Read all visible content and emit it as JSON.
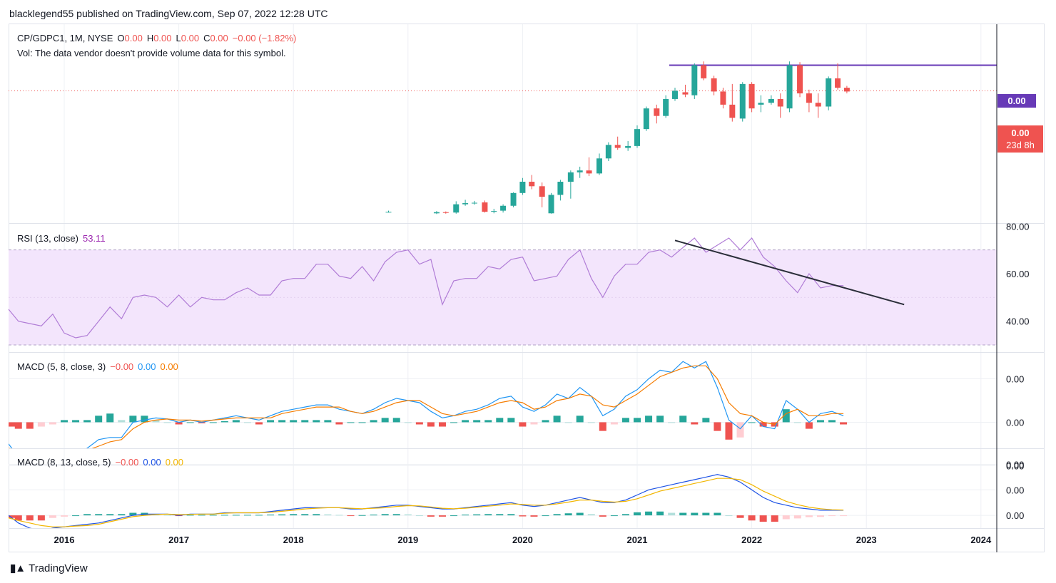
{
  "header": {
    "publisher": "blacklegend55 published on TradingView.com, Sep 07, 2022 12:28 UTC"
  },
  "main_legend": {
    "symbol": "CP/GDPC1, 1M, NYSE",
    "o_label": "O",
    "o_value": "0.00",
    "h_label": "H",
    "h_value": "0.00",
    "l_label": "L",
    "l_value": "0.00",
    "c_label": "C",
    "c_value": "0.00",
    "change": "−0.00 (−1.82%)",
    "volume_note": "Vol: The data vendor doesn't provide volume data for this symbol."
  },
  "price_labels": {
    "resistance": "0.00",
    "last": "0.00",
    "countdown": "23d 8h"
  },
  "rsi_legend": {
    "name": "RSI (13, close)",
    "value": "53.11"
  },
  "macd1_legend": {
    "name": "MACD (5, 8, close, 3)",
    "hist": "−0.00",
    "macd": "0.00",
    "signal": "0.00"
  },
  "macd2_legend": {
    "name": "MACD (8, 13, close, 5)",
    "hist": "−0.00",
    "macd": "0.00",
    "signal": "0.00"
  },
  "brand": {
    "name": "TradingView"
  },
  "colors": {
    "up": "#26a69a",
    "down": "#ef5350",
    "rsi": "#b07cd6",
    "rsi_band": "#f3e5fc",
    "macd1": "#2196f3",
    "signal1": "#f57c00",
    "macd2": "#1e53e5",
    "signal2": "#f2b600",
    "resistance": "#673ab7"
  },
  "chart_data": [
    {
      "type": "candlestick",
      "x_tick_labels": [
        "2016",
        "2017",
        "2018",
        "2019",
        "2020",
        "2021",
        "2022",
        "2023",
        "2024"
      ],
      "x_tick_years": [
        2016,
        2017,
        2018,
        2019,
        2020,
        2021,
        2022,
        2023,
        2024
      ],
      "y_tick_labels": [],
      "note": "Monthly candles; y values in relative price units",
      "candles": [
        {
          "t": 2018.83,
          "o": 1.0,
          "h": 1.3,
          "l": 0.8,
          "c": 1.0
        },
        {
          "t": 2019.25,
          "o": 0.6,
          "h": 1.2,
          "l": 0.4,
          "c": 0.9
        },
        {
          "t": 2019.33,
          "o": 0.9,
          "h": 1.1,
          "l": 0.5,
          "c": 0.7
        },
        {
          "t": 2019.42,
          "o": 0.8,
          "h": 3.8,
          "l": 0.5,
          "c": 3.0
        },
        {
          "t": 2019.5,
          "o": 3.0,
          "h": 4.2,
          "l": 2.6,
          "c": 3.3
        },
        {
          "t": 2019.58,
          "o": 3.3,
          "h": 3.9,
          "l": 2.9,
          "c": 3.4
        },
        {
          "t": 2019.67,
          "o": 3.5,
          "h": 4.0,
          "l": 0.8,
          "c": 1.0
        },
        {
          "t": 2019.75,
          "o": 1.0,
          "h": 1.8,
          "l": 0.6,
          "c": 1.2
        },
        {
          "t": 2019.83,
          "o": 1.3,
          "h": 3.0,
          "l": 0.8,
          "c": 2.6
        },
        {
          "t": 2019.92,
          "o": 2.6,
          "h": 6.2,
          "l": 2.2,
          "c": 6.0
        },
        {
          "t": 2020.0,
          "o": 6.0,
          "h": 10.0,
          "l": 5.5,
          "c": 9.0
        },
        {
          "t": 2020.08,
          "o": 9.0,
          "h": 10.8,
          "l": 7.0,
          "c": 7.8
        },
        {
          "t": 2020.17,
          "o": 7.8,
          "h": 8.8,
          "l": 2.2,
          "c": 5.0
        },
        {
          "t": 2020.25,
          "o": 0.6,
          "h": 6.0,
          "l": 0.5,
          "c": 5.5
        },
        {
          "t": 2020.33,
          "o": 5.5,
          "h": 9.5,
          "l": 4.0,
          "c": 9.0
        },
        {
          "t": 2020.42,
          "o": 9.0,
          "h": 12.0,
          "l": 4.5,
          "c": 11.5
        },
        {
          "t": 2020.5,
          "o": 11.5,
          "h": 13.0,
          "l": 10.0,
          "c": 12.0
        },
        {
          "t": 2020.58,
          "o": 12.0,
          "h": 15.5,
          "l": 10.5,
          "c": 11.2
        },
        {
          "t": 2020.67,
          "o": 11.2,
          "h": 16.5,
          "l": 10.8,
          "c": 15.2
        },
        {
          "t": 2020.75,
          "o": 15.2,
          "h": 19.5,
          "l": 14.5,
          "c": 18.8
        },
        {
          "t": 2020.83,
          "o": 18.8,
          "h": 21.0,
          "l": 17.5,
          "c": 18.0
        },
        {
          "t": 2020.92,
          "o": 18.0,
          "h": 19.8,
          "l": 17.2,
          "c": 18.5
        },
        {
          "t": 2021.0,
          "o": 18.5,
          "h": 24.0,
          "l": 18.0,
          "c": 23.0
        },
        {
          "t": 2021.08,
          "o": 23.0,
          "h": 29.0,
          "l": 22.5,
          "c": 28.5
        },
        {
          "t": 2021.17,
          "o": 28.5,
          "h": 29.5,
          "l": 24.5,
          "c": 26.5
        },
        {
          "t": 2021.25,
          "o": 26.5,
          "h": 32.0,
          "l": 26.0,
          "c": 31.0
        },
        {
          "t": 2021.33,
          "o": 31.0,
          "h": 34.0,
          "l": 30.5,
          "c": 33.2
        },
        {
          "t": 2021.42,
          "o": 32.8,
          "h": 34.8,
          "l": 31.5,
          "c": 32.2
        },
        {
          "t": 2021.5,
          "o": 32.0,
          "h": 40.5,
          "l": 31.0,
          "c": 40.0
        },
        {
          "t": 2021.58,
          "o": 40.0,
          "h": 41.0,
          "l": 36.0,
          "c": 36.5
        },
        {
          "t": 2021.67,
          "o": 36.5,
          "h": 37.2,
          "l": 32.0,
          "c": 33.0
        },
        {
          "t": 2021.75,
          "o": 33.0,
          "h": 34.0,
          "l": 28.5,
          "c": 29.5
        },
        {
          "t": 2021.83,
          "o": 29.5,
          "h": 35.0,
          "l": 25.0,
          "c": 26.0
        },
        {
          "t": 2021.92,
          "o": 25.8,
          "h": 35.5,
          "l": 25.0,
          "c": 35.0
        },
        {
          "t": 2022.0,
          "o": 35.0,
          "h": 35.5,
          "l": 27.5,
          "c": 28.5
        },
        {
          "t": 2022.08,
          "o": 29.5,
          "h": 32.0,
          "l": 27.5,
          "c": 30.0
        },
        {
          "t": 2022.17,
          "o": 30.0,
          "h": 32.0,
          "l": 29.5,
          "c": 31.0
        },
        {
          "t": 2022.25,
          "o": 31.0,
          "h": 32.5,
          "l": 26.0,
          "c": 29.0
        },
        {
          "t": 2022.33,
          "o": 28.5,
          "h": 41.0,
          "l": 27.5,
          "c": 40.0
        },
        {
          "t": 2022.42,
          "o": 40.0,
          "h": 40.8,
          "l": 31.5,
          "c": 32.5
        },
        {
          "t": 2022.5,
          "o": 32.5,
          "h": 33.5,
          "l": 27.5,
          "c": 30.0
        },
        {
          "t": 2022.58,
          "o": 30.0,
          "h": 32.5,
          "l": 26.0,
          "c": 29.0
        },
        {
          "t": 2022.67,
          "o": 29.0,
          "h": 37.0,
          "l": 28.0,
          "c": 36.5
        },
        {
          "t": 2022.75,
          "o": 36.5,
          "h": 40.5,
          "l": 33.5,
          "c": 34.0
        },
        {
          "t": 2022.83,
          "o": 34.0,
          "h": 34.5,
          "l": 32.5,
          "c": 33.0
        }
      ],
      "resistance_level": 40.0,
      "last_price": 33.2
    },
    {
      "type": "line",
      "series_label": "RSI (13, close)",
      "y_tick_labels": [
        "80.00",
        "60.00",
        "40.00"
      ],
      "y_ticks": [
        80,
        60,
        40
      ],
      "ylim": [
        27,
        81
      ],
      "band": [
        30,
        70
      ],
      "x": [
        2015.5,
        2015.6,
        2015.7,
        2015.8,
        2015.9,
        2016.0,
        2016.1,
        2016.2,
        2016.3,
        2016.4,
        2016.5,
        2016.6,
        2016.7,
        2016.8,
        2016.9,
        2017.0,
        2017.1,
        2017.2,
        2017.3,
        2017.4,
        2017.5,
        2017.6,
        2017.7,
        2017.8,
        2017.9,
        2018.0,
        2018.1,
        2018.2,
        2018.3,
        2018.4,
        2018.5,
        2018.6,
        2018.7,
        2018.8,
        2018.9,
        2019.0,
        2019.1,
        2019.2,
        2019.3,
        2019.4,
        2019.5,
        2019.6,
        2019.7,
        2019.8,
        2019.9,
        2020.0,
        2020.1,
        2020.2,
        2020.3,
        2020.4,
        2020.5,
        2020.6,
        2020.7,
        2020.8,
        2020.9,
        2021.0,
        2021.1,
        2021.2,
        2021.3,
        2021.4,
        2021.5,
        2021.6,
        2021.7,
        2021.8,
        2021.9,
        2022.0,
        2022.1,
        2022.2,
        2022.3,
        2022.4,
        2022.5,
        2022.6,
        2022.7,
        2022.8
      ],
      "y": [
        45,
        40,
        39,
        38,
        43,
        35,
        33,
        34,
        40,
        46,
        41,
        50,
        51,
        50,
        46,
        51,
        46,
        50,
        49,
        49,
        52,
        54,
        51,
        51,
        57,
        58,
        58,
        64,
        64,
        59,
        58,
        63,
        57,
        65,
        69,
        70,
        64,
        66,
        47,
        57,
        58,
        58,
        63,
        62,
        66,
        67,
        57,
        58,
        59,
        66,
        70,
        58,
        50,
        59,
        64,
        64,
        69,
        70,
        67,
        71,
        75,
        69,
        72,
        75,
        70,
        75,
        67,
        63,
        57,
        52,
        60,
        54,
        55,
        55
      ],
      "trendline": {
        "x": [
          2021.33,
          2023.33
        ],
        "y": [
          74,
          47
        ]
      }
    },
    {
      "type": "line+bar",
      "series_label": "MACD (5, 8, close, 3)",
      "y_tick_labels": [
        "0.00",
        "0.00",
        "0.00"
      ],
      "y_ticks": [
        2,
        0,
        -2
      ],
      "ylim": [
        -1.2,
        3.2
      ],
      "x": [
        2015.5,
        2015.6,
        2015.7,
        2015.8,
        2015.9,
        2016.0,
        2016.1,
        2016.2,
        2016.3,
        2016.4,
        2016.5,
        2016.6,
        2016.7,
        2016.8,
        2016.9,
        2017.0,
        2017.1,
        2017.2,
        2017.3,
        2017.4,
        2017.5,
        2017.6,
        2017.7,
        2017.8,
        2017.9,
        2018.0,
        2018.1,
        2018.2,
        2018.3,
        2018.4,
        2018.5,
        2018.6,
        2018.7,
        2018.8,
        2018.9,
        2019.0,
        2019.1,
        2019.2,
        2019.3,
        2019.4,
        2019.5,
        2019.6,
        2019.7,
        2019.8,
        2019.9,
        2020.0,
        2020.1,
        2020.2,
        2020.3,
        2020.4,
        2020.5,
        2020.6,
        2020.7,
        2020.8,
        2020.9,
        2021.0,
        2021.1,
        2021.2,
        2021.3,
        2021.4,
        2021.5,
        2021.6,
        2021.7,
        2021.8,
        2021.9,
        2022.0,
        2022.1,
        2022.2,
        2022.3,
        2022.4,
        2022.5,
        2022.6,
        2022.7,
        2022.8
      ],
      "macd": [
        -1.0,
        -1.6,
        -1.8,
        -1.9,
        -1.7,
        -1.5,
        -1.4,
        -1.2,
        -0.8,
        -0.7,
        -0.7,
        0.0,
        0.1,
        0.2,
        0.15,
        0.0,
        0.1,
        0.0,
        0.1,
        0.2,
        0.3,
        0.2,
        0.1,
        0.3,
        0.5,
        0.6,
        0.7,
        0.8,
        0.8,
        0.6,
        0.5,
        0.4,
        0.6,
        0.9,
        1.1,
        1.0,
        0.9,
        0.5,
        0.2,
        0.3,
        0.5,
        0.6,
        0.8,
        1.1,
        1.2,
        0.7,
        0.5,
        0.8,
        1.3,
        1.1,
        1.6,
        1.2,
        0.3,
        0.6,
        1.2,
        1.5,
        2.0,
        2.4,
        2.3,
        2.8,
        2.5,
        2.8,
        1.6,
        0.1,
        -0.3,
        0.3,
        -0.2,
        -0.3,
        1.0,
        0.6,
        0.0,
        0.4,
        0.5,
        0.3
      ],
      "signal": [
        -1.2,
        -1.3,
        -1.4,
        -1.5,
        -1.6,
        -1.6,
        -1.5,
        -1.3,
        -1.1,
        -0.9,
        -0.8,
        -0.3,
        0.0,
        0.1,
        0.15,
        0.1,
        0.1,
        0.05,
        0.1,
        0.15,
        0.2,
        0.2,
        0.2,
        0.2,
        0.4,
        0.5,
        0.6,
        0.7,
        0.7,
        0.7,
        0.5,
        0.4,
        0.5,
        0.7,
        0.9,
        1.0,
        1.0,
        0.7,
        0.4,
        0.3,
        0.4,
        0.5,
        0.7,
        0.9,
        1.0,
        0.9,
        0.6,
        0.7,
        1.0,
        1.1,
        1.3,
        1.2,
        0.8,
        0.7,
        1.0,
        1.3,
        1.7,
        2.1,
        2.3,
        2.5,
        2.6,
        2.6,
        2.0,
        0.9,
        0.4,
        0.3,
        0.0,
        -0.1,
        0.4,
        0.6,
        0.3,
        0.3,
        0.4,
        0.4
      ],
      "hist": [
        -0.2,
        -0.3,
        -0.3,
        -0.2,
        -0.1,
        0.1,
        0.1,
        0.1,
        0.3,
        0.4,
        0.1,
        0.3,
        0.3,
        0.1,
        0.0,
        -0.1,
        0.0,
        -0.05,
        0.0,
        0.05,
        0.1,
        0.0,
        -0.1,
        0.1,
        0.1,
        0.1,
        0.1,
        0.1,
        0.1,
        -0.1,
        0.0,
        0.0,
        0.1,
        0.2,
        0.2,
        0.0,
        -0.1,
        -0.2,
        -0.2,
        0.0,
        0.1,
        0.1,
        0.1,
        0.2,
        0.2,
        -0.2,
        -0.1,
        0.1,
        0.3,
        0.0,
        0.3,
        0.0,
        -0.4,
        -0.1,
        0.2,
        0.2,
        0.3,
        0.3,
        0.0,
        0.3,
        -0.1,
        0.2,
        -0.4,
        -0.8,
        -0.7,
        0.0,
        -0.2,
        -0.2,
        0.6,
        0.0,
        -0.3,
        0.1,
        0.1,
        -0.1
      ]
    },
    {
      "type": "line+bar",
      "series_label": "MACD (8, 13, close, 5)",
      "y_tick_labels": [
        "0.00",
        "0.00",
        "0.00"
      ],
      "y_ticks": [
        2,
        1,
        0
      ],
      "ylim": [
        -0.5,
        2.6
      ],
      "x": [
        2015.5,
        2015.6,
        2015.7,
        2015.8,
        2015.9,
        2016.0,
        2016.1,
        2016.2,
        2016.3,
        2016.4,
        2016.5,
        2016.6,
        2016.7,
        2016.8,
        2016.9,
        2017.0,
        2017.1,
        2017.2,
        2017.3,
        2017.4,
        2017.5,
        2017.6,
        2017.7,
        2017.8,
        2017.9,
        2018.0,
        2018.1,
        2018.2,
        2018.3,
        2018.4,
        2018.5,
        2018.6,
        2018.7,
        2018.8,
        2018.9,
        2019.0,
        2019.1,
        2019.2,
        2019.3,
        2019.4,
        2019.5,
        2019.6,
        2019.7,
        2019.8,
        2019.9,
        2020.0,
        2020.1,
        2020.2,
        2020.3,
        2020.4,
        2020.5,
        2020.6,
        2020.7,
        2020.8,
        2020.9,
        2021.0,
        2021.1,
        2021.2,
        2021.3,
        2021.4,
        2021.5,
        2021.6,
        2021.7,
        2021.8,
        2021.9,
        2022.0,
        2022.1,
        2022.2,
        2022.3,
        2022.4,
        2022.5,
        2022.6,
        2022.7,
        2022.8
      ],
      "macd": [
        0.0,
        -0.3,
        -0.5,
        -0.6,
        -0.5,
        -0.45,
        -0.4,
        -0.35,
        -0.3,
        -0.2,
        -0.1,
        0.0,
        0.05,
        0.05,
        0.05,
        0.0,
        0.05,
        0.05,
        0.05,
        0.1,
        0.1,
        0.1,
        0.1,
        0.15,
        0.2,
        0.25,
        0.3,
        0.3,
        0.3,
        0.3,
        0.25,
        0.25,
        0.3,
        0.35,
        0.4,
        0.4,
        0.35,
        0.3,
        0.25,
        0.25,
        0.3,
        0.35,
        0.4,
        0.45,
        0.5,
        0.4,
        0.35,
        0.4,
        0.5,
        0.6,
        0.7,
        0.6,
        0.5,
        0.5,
        0.6,
        0.8,
        1.0,
        1.1,
        1.2,
        1.3,
        1.4,
        1.5,
        1.6,
        1.5,
        1.3,
        1.0,
        0.7,
        0.5,
        0.4,
        0.3,
        0.25,
        0.2,
        0.2,
        0.2
      ],
      "signal": [
        -0.1,
        -0.2,
        -0.3,
        -0.4,
        -0.45,
        -0.45,
        -0.42,
        -0.4,
        -0.35,
        -0.25,
        -0.15,
        -0.05,
        0.0,
        0.03,
        0.05,
        0.03,
        0.04,
        0.05,
        0.05,
        0.08,
        0.1,
        0.1,
        0.1,
        0.12,
        0.16,
        0.2,
        0.25,
        0.28,
        0.3,
        0.3,
        0.28,
        0.26,
        0.28,
        0.3,
        0.35,
        0.38,
        0.37,
        0.33,
        0.28,
        0.26,
        0.28,
        0.32,
        0.36,
        0.4,
        0.45,
        0.43,
        0.4,
        0.4,
        0.45,
        0.52,
        0.6,
        0.6,
        0.55,
        0.52,
        0.55,
        0.65,
        0.8,
        0.95,
        1.05,
        1.15,
        1.25,
        1.35,
        1.45,
        1.45,
        1.4,
        1.2,
        0.95,
        0.75,
        0.55,
        0.42,
        0.32,
        0.26,
        0.22,
        0.21
      ],
      "hist": [
        -0.1,
        -0.2,
        -0.2,
        -0.2,
        -0.1,
        -0.05,
        0.0,
        0.05,
        0.05,
        0.05,
        0.05,
        0.1,
        0.1,
        0.05,
        0.02,
        -0.02,
        0.02,
        0.02,
        0.02,
        0.02,
        0.02,
        0.02,
        0.02,
        0.03,
        0.04,
        0.05,
        0.05,
        0.05,
        0.04,
        0.02,
        -0.02,
        0.01,
        0.03,
        0.05,
        0.05,
        0.04,
        0.0,
        -0.05,
        -0.05,
        0.0,
        0.03,
        0.04,
        0.05,
        0.05,
        0.05,
        -0.04,
        -0.05,
        0.0,
        0.05,
        0.08,
        0.1,
        0.05,
        -0.05,
        0.0,
        0.05,
        0.12,
        0.15,
        0.15,
        0.1,
        0.1,
        0.1,
        0.1,
        0.1,
        0.0,
        -0.1,
        -0.2,
        -0.25,
        -0.25,
        -0.15,
        -0.12,
        -0.07,
        -0.06,
        -0.02,
        -0.01
      ]
    }
  ]
}
